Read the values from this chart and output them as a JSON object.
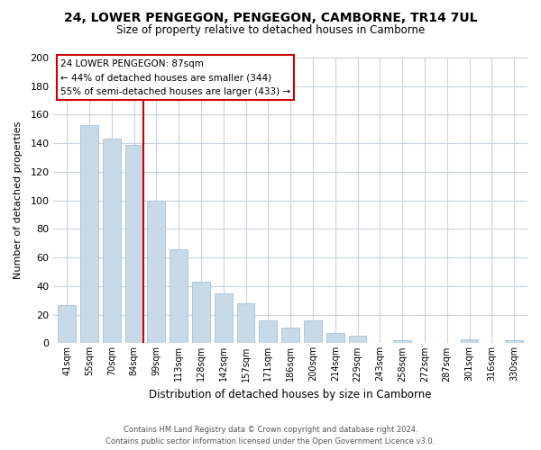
{
  "title": "24, LOWER PENGEGON, PENGEGON, CAMBORNE, TR14 7UL",
  "subtitle": "Size of property relative to detached houses in Camborne",
  "xlabel": "Distribution of detached houses by size in Camborne",
  "ylabel": "Number of detached properties",
  "bar_color": "#c8d9e8",
  "bar_edge_color": "#a8c0d8",
  "categories": [
    "41sqm",
    "55sqm",
    "70sqm",
    "84sqm",
    "99sqm",
    "113sqm",
    "128sqm",
    "142sqm",
    "157sqm",
    "171sqm",
    "186sqm",
    "200sqm",
    "214sqm",
    "229sqm",
    "243sqm",
    "258sqm",
    "272sqm",
    "287sqm",
    "301sqm",
    "316sqm",
    "330sqm"
  ],
  "values": [
    27,
    153,
    143,
    139,
    100,
    66,
    43,
    35,
    28,
    16,
    11,
    16,
    7,
    5,
    0,
    2,
    0,
    0,
    3,
    0,
    2
  ],
  "ylim": [
    0,
    200
  ],
  "yticks": [
    0,
    20,
    40,
    60,
    80,
    100,
    120,
    140,
    160,
    180,
    200
  ],
  "property_line_index": 3,
  "property_line_color": "#cc0000",
  "annotation_title": "24 LOWER PENGEGON: 87sqm",
  "annotation_line1": "← 44% of detached houses are smaller (344)",
  "annotation_line2": "55% of semi-detached houses are larger (433) →",
  "annotation_box_color": "#ffffff",
  "annotation_box_edge_color": "#cc0000",
  "footer_line1": "Contains HM Land Registry data © Crown copyright and database right 2024.",
  "footer_line2": "Contains public sector information licensed under the Open Government Licence v3.0.",
  "background_color": "#ffffff",
  "grid_color": "#c8d4de"
}
